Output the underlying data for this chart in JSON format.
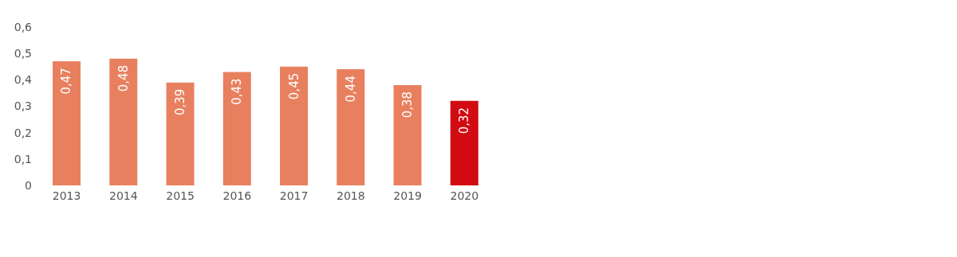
{
  "chart_data": {
    "type": "bar",
    "categories": [
      "2013",
      "2014",
      "2015",
      "2016",
      "2017",
      "2018",
      "2019",
      "2020"
    ],
    "values": [
      0.47,
      0.48,
      0.39,
      0.43,
      0.45,
      0.44,
      0.38,
      0.32
    ],
    "colors": [
      "#e8805f",
      "#e8805f",
      "#e8805f",
      "#e8805f",
      "#e8805f",
      "#e8805f",
      "#e8805f",
      "#d20a11"
    ],
    "value_labels": [
      "0,47",
      "0,48",
      "0,39",
      "0,43",
      "0,45",
      "0,44",
      "0,38",
      "0,32"
    ],
    "ylim": [
      0,
      0.6
    ],
    "yticks": [
      {
        "value": 0,
        "label": "0"
      },
      {
        "value": 0.1,
        "label": "0,1"
      },
      {
        "value": 0.2,
        "label": "0,2"
      },
      {
        "value": 0.3,
        "label": "0,3"
      },
      {
        "value": 0.4,
        "label": "0,4"
      },
      {
        "value": 0.5,
        "label": "0,5"
      },
      {
        "value": 0.6,
        "label": "0,6"
      }
    ],
    "grid": false,
    "legend": false
  }
}
